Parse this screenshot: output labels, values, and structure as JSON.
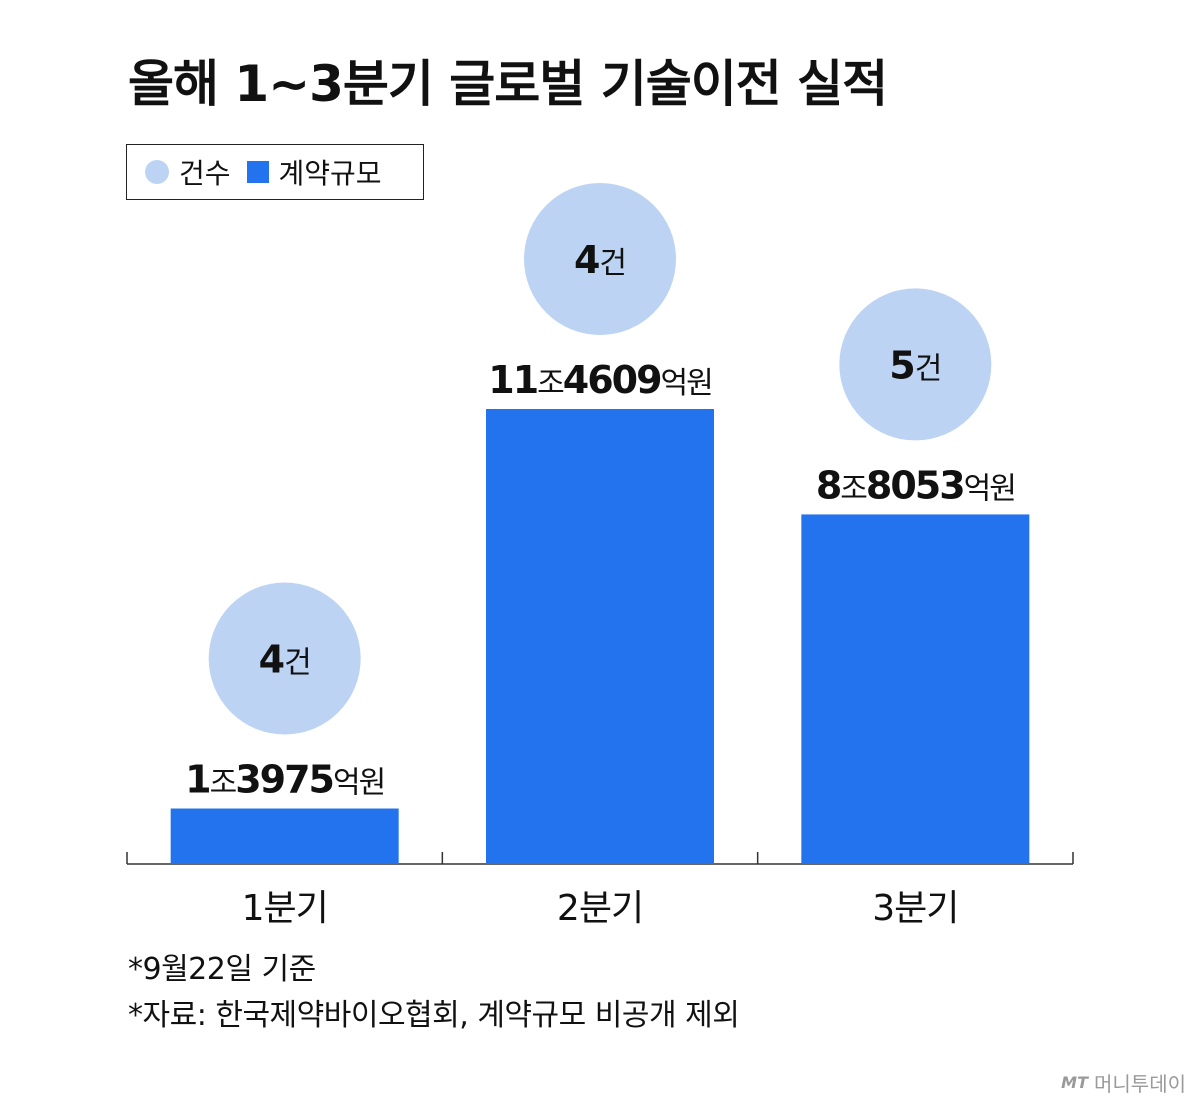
{
  "title": "올해 1~3분기 글로벌 기술이전 실적",
  "legend": {
    "count_label": "건수",
    "value_label": "계약규모"
  },
  "chart_data": {
    "type": "bar",
    "categories": [
      "1분기",
      "2분기",
      "3분기"
    ],
    "series": [
      {
        "name": "계약규모",
        "unit": "억원",
        "values": [
          13975,
          114609,
          88053
        ],
        "labels": [
          {
            "lead": "1",
            "jo": "조",
            "rest": "3975",
            "eok": "억원"
          },
          {
            "lead": "11",
            "jo": "조",
            "rest": "4609",
            "eok": "억원"
          },
          {
            "lead": "8",
            "jo": "조",
            "rest": "8053",
            "eok": "억원"
          }
        ]
      },
      {
        "name": "건수",
        "unit": "건",
        "values": [
          4,
          4,
          5
        ]
      }
    ],
    "colors": {
      "bar": "#2372ee",
      "bubble": "#bcd3f3",
      "axis": "#333333"
    }
  },
  "notes": [
    "*9월22일 기준",
    "*자료: 한국제약바이오협회, 계약규모 비공개 제외"
  ],
  "credit": {
    "mark": "MT",
    "name": "머니투데이"
  }
}
